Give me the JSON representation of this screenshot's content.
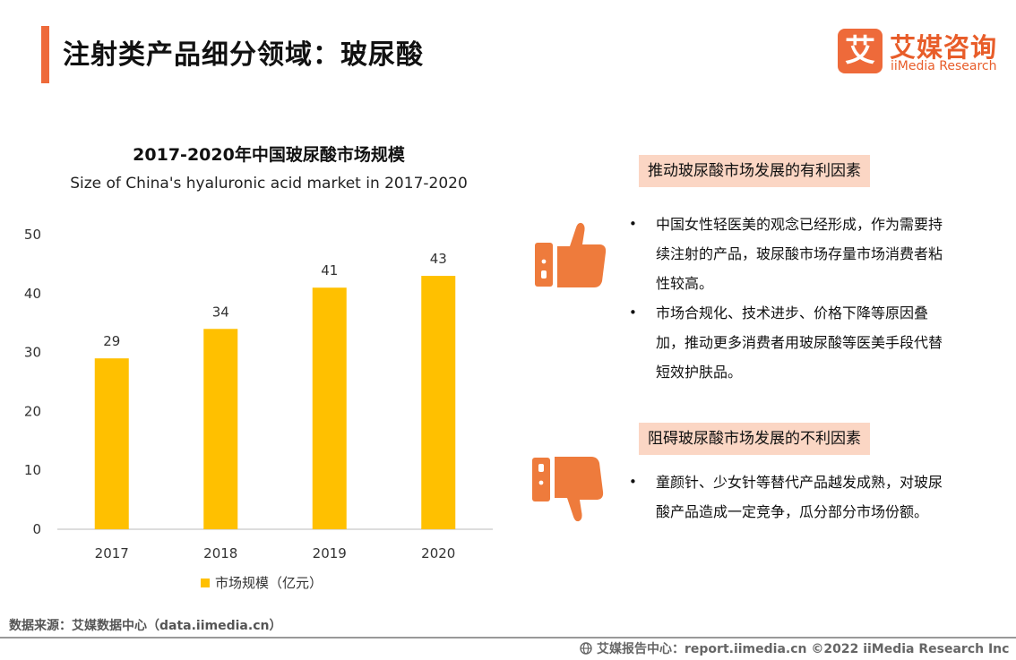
{
  "header": {
    "title": "注射类产品细分领域：玻尿酸",
    "accent_color": "#EE6A3A"
  },
  "brand": {
    "mark_char": "艾",
    "name_cn": "艾媒咨询",
    "name_en": "iiMedia Research"
  },
  "chart_data": {
    "type": "bar",
    "title": "2017-2020年中国玻尿酸市场规模",
    "subtitle": "Size of China's hyaluronic acid market in 2017-2020",
    "categories": [
      "2017",
      "2018",
      "2019",
      "2020"
    ],
    "series": [
      {
        "name": "市场规模（亿元）",
        "values": [
          29,
          34,
          41,
          43
        ],
        "color": "#FFC000"
      }
    ],
    "yticks": [
      "0",
      "10",
      "20",
      "30",
      "40",
      "50"
    ],
    "ylim": [
      0,
      50
    ],
    "grid": false,
    "legend": "bottom"
  },
  "favorable": {
    "title": "推动玻尿酸市场发展的有利因素",
    "icon": "thumbs-up-icon",
    "items": [
      "中国女性轻医美的观念已经形成，作为需要持续注射的产品，玻尿酸市场存量市场消费者粘性较高。",
      "市场合规化、技术进步、价格下降等原因叠加，推动更多消费者用玻尿酸等医美手段代替短效护肤品。"
    ]
  },
  "unfavorable": {
    "title": "阻碍玻尿酸市场发展的不利因素",
    "icon": "thumbs-down-icon",
    "items": [
      "童颜针、少女针等替代产品越发成熟，对玻尿酸产品造成一定竞争，瓜分部分市场份额。"
    ]
  },
  "footer": {
    "source": "数据来源：艾媒数据中心（data.iimedia.cn）",
    "report": "艾媒报告中心：report.iimedia.cn ©2022 iiMedia Research Inc"
  }
}
